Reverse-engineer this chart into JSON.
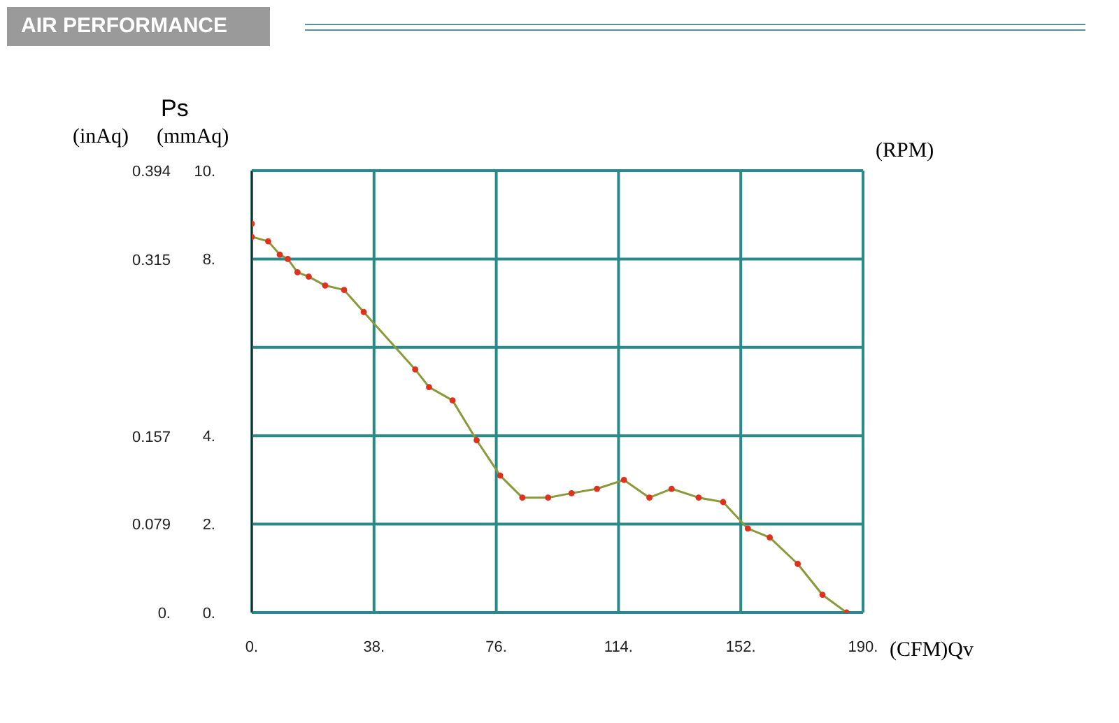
{
  "chart_data": {
    "type": "line",
    "title": "AIR PERFORMANCE",
    "xlabel": "(CFM)Qv",
    "ylabel": "Ps (mmAq)",
    "y2label": "(inAq)",
    "annotations": [
      "(RPM)"
    ],
    "xlim": [
      0,
      190
    ],
    "xticks": [
      {
        "value": 0,
        "label": "0."
      },
      {
        "value": 38,
        "label": "38."
      },
      {
        "value": 76,
        "label": "76."
      },
      {
        "value": 114,
        "label": "114."
      },
      {
        "value": 152,
        "label": "152."
      },
      {
        "value": 190,
        "label": "190."
      }
    ],
    "ylim": [
      0,
      10
    ],
    "yticks": [
      {
        "value": 0,
        "label": "0."
      },
      {
        "value": 2,
        "label": "2."
      },
      {
        "value": 4,
        "label": "4."
      },
      {
        "value": 6,
        "label": null
      },
      {
        "value": 8,
        "label": "8."
      },
      {
        "value": 10,
        "label": "10."
      }
    ],
    "y2lim": [
      0,
      0.394
    ],
    "y2ticks": [
      {
        "value": 0,
        "label": "0."
      },
      0.079,
      0.157,
      0.315,
      0.394
    ],
    "grid": true,
    "marker": "circle",
    "line_style": "solid",
    "series": [
      {
        "color": "#8a9a3a",
        "colors": [
          "#e0301e",
          "#e0301e",
          "#e0301e",
          "#e0301e",
          "#e0301e",
          "#e0301e",
          "#e0301e",
          "#e0301e",
          "#e0301e",
          "#e0301e",
          "#e0301e",
          "#e0301e",
          "#e0301e",
          "#e0301e",
          "#e0301e",
          "#e0301e",
          "#e0301e",
          "#e0301e",
          "#e0301e",
          "#e0301e",
          "#e0301e",
          "#e0301e",
          "#e0301e",
          "#e0301e",
          "#e0301e",
          "#e0301e",
          "#e0301e",
          "#e0301e",
          "#e0301e"
        ],
        "x": [
          0,
          0,
          5.1,
          8.7,
          11.2,
          14.2,
          17.7,
          22.8,
          28.7,
          34.8,
          50.8,
          55.1,
          62.4,
          69.9,
          77.2,
          84.1,
          92.1,
          99.4,
          107.3,
          115.7,
          123.6,
          130.5,
          138.9,
          146.5,
          154.2,
          161.0,
          169.7,
          177.4,
          184.9
        ],
        "values": [
          8.8,
          8.5,
          8.4,
          8.1,
          8.0,
          7.7,
          7.6,
          7.4,
          7.3,
          6.8,
          5.5,
          5.1,
          4.8,
          3.9,
          3.1,
          2.6,
          2.6,
          2.7,
          2.8,
          3.0,
          2.6,
          2.8,
          2.6,
          2.5,
          1.9,
          1.7,
          1.1,
          0.4,
          0
        ]
      }
    ]
  }
}
